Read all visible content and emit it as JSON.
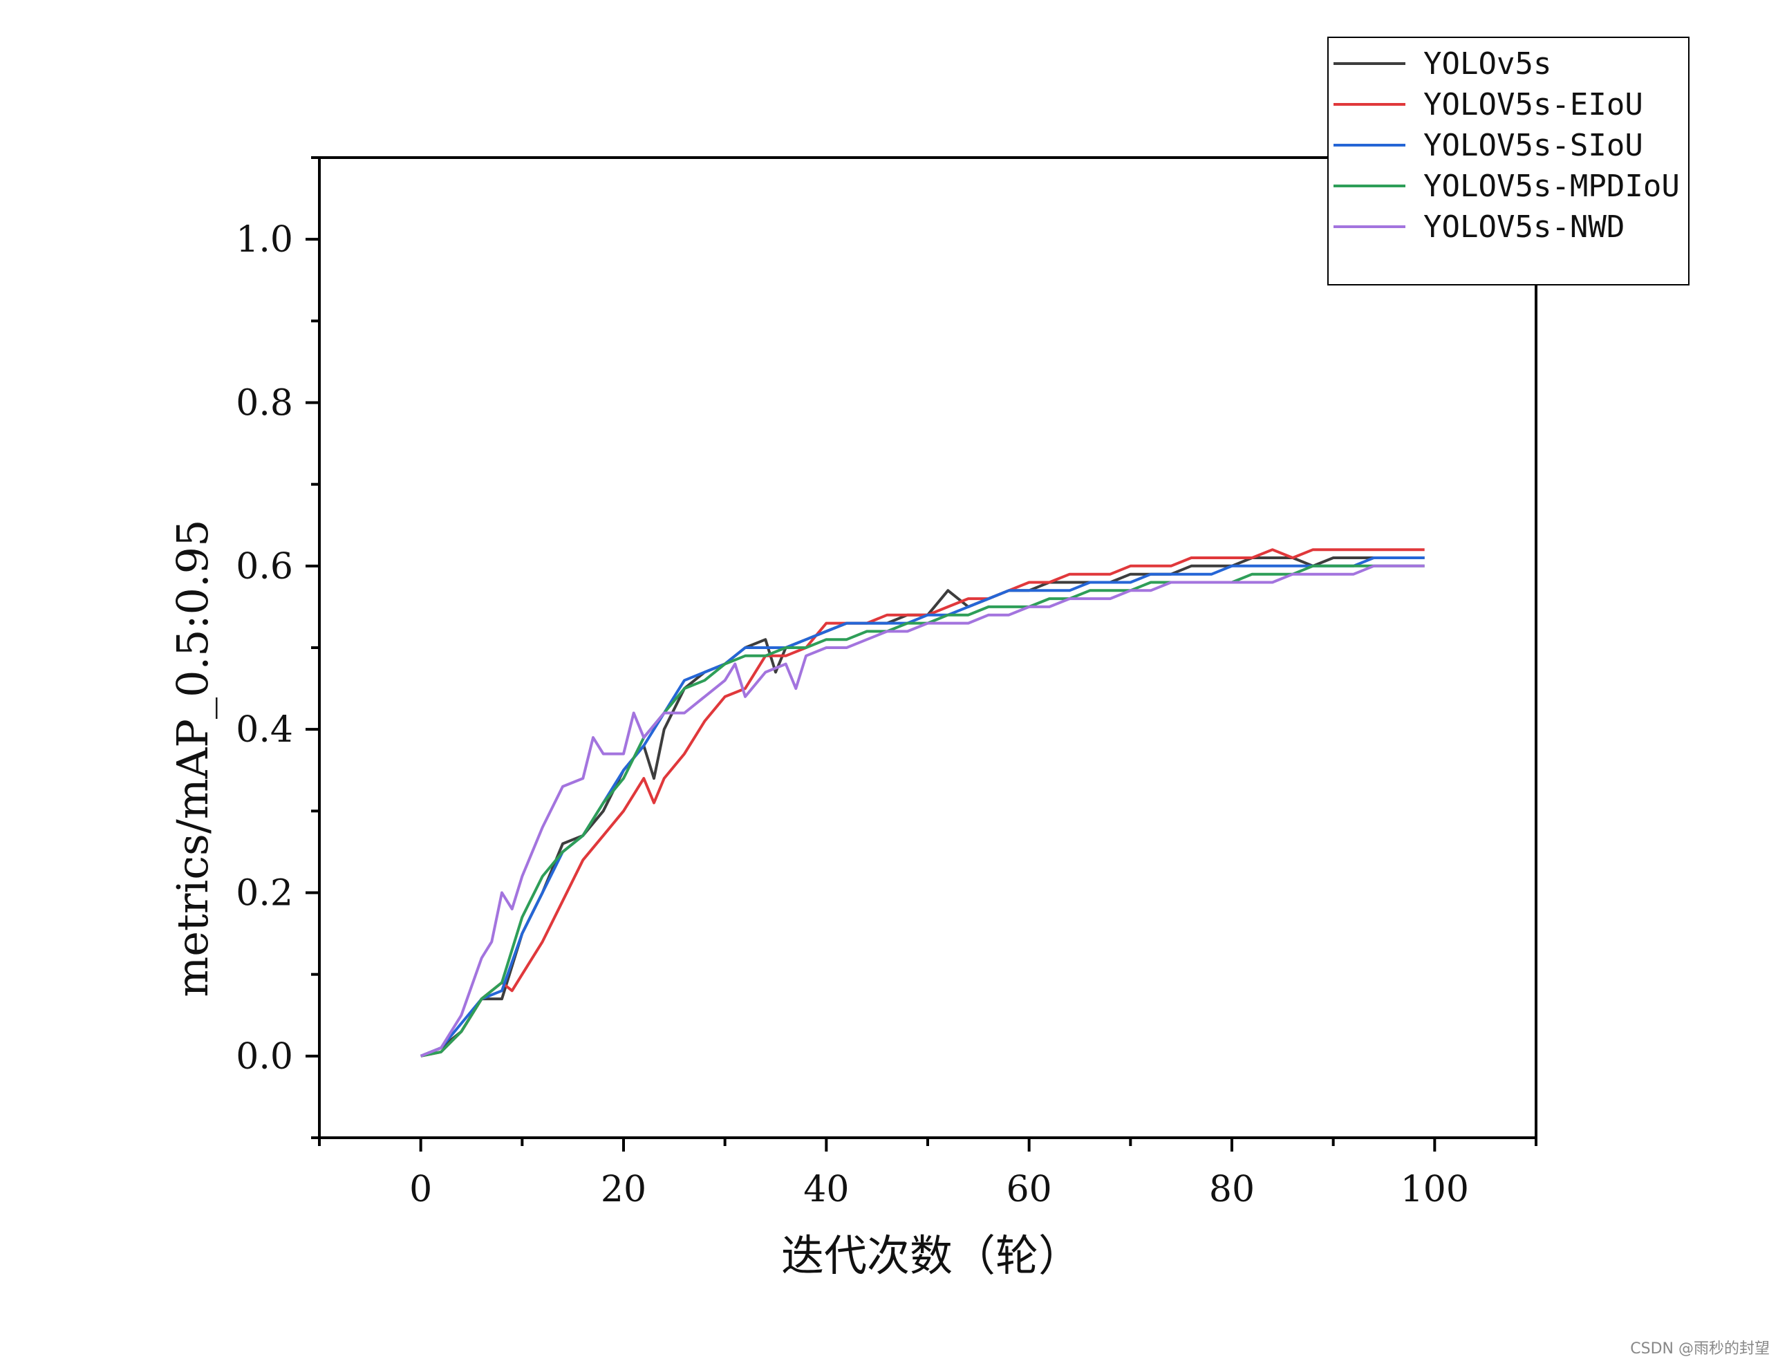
{
  "chart_data": {
    "type": "line",
    "title": "",
    "xlabel": "迭代次数（轮）",
    "ylabel": "metrics/mAP_0.5:0.95",
    "xlim": [
      -10,
      110
    ],
    "ylim": [
      -0.1,
      1.1
    ],
    "x_ticks": [
      0,
      20,
      40,
      60,
      80,
      100
    ],
    "x_tick_labels": [
      "0",
      "20",
      "40",
      "60",
      "80",
      "100"
    ],
    "y_ticks": [
      0.0,
      0.2,
      0.4,
      0.6,
      0.8,
      1.0
    ],
    "y_tick_labels": [
      "0.0",
      "0.2",
      "0.4",
      "0.6",
      "0.8",
      "1.0"
    ],
    "grid": false,
    "legend_position": "top-right",
    "series": [
      {
        "name": "YOLOv5s",
        "color": "#3d3d3d",
        "x": [
          0,
          2,
          4,
          6,
          8,
          10,
          12,
          14,
          16,
          18,
          20,
          22,
          23,
          24,
          26,
          28,
          30,
          32,
          34,
          35,
          36,
          38,
          40,
          42,
          44,
          46,
          48,
          50,
          52,
          54,
          56,
          58,
          60,
          62,
          64,
          66,
          68,
          70,
          72,
          74,
          76,
          78,
          80,
          82,
          84,
          86,
          88,
          90,
          92,
          94,
          96,
          98,
          99
        ],
        "y": [
          0,
          0.01,
          0.03,
          0.07,
          0.07,
          0.15,
          0.2,
          0.26,
          0.27,
          0.3,
          0.35,
          0.38,
          0.34,
          0.4,
          0.45,
          0.47,
          0.48,
          0.5,
          0.51,
          0.47,
          0.5,
          0.51,
          0.52,
          0.53,
          0.53,
          0.53,
          0.54,
          0.54,
          0.57,
          0.55,
          0.56,
          0.57,
          0.57,
          0.58,
          0.58,
          0.58,
          0.58,
          0.59,
          0.59,
          0.59,
          0.6,
          0.6,
          0.6,
          0.61,
          0.61,
          0.61,
          0.6,
          0.61,
          0.61,
          0.61,
          0.61,
          0.61,
          0.61
        ]
      },
      {
        "name": "YOLOV5s-EIoU",
        "color": "#e0383b",
        "x": [
          0,
          2,
          4,
          6,
          8,
          9,
          10,
          12,
          14,
          16,
          18,
          20,
          22,
          23,
          24,
          26,
          28,
          30,
          32,
          34,
          36,
          38,
          40,
          42,
          44,
          46,
          48,
          50,
          52,
          54,
          56,
          58,
          60,
          62,
          64,
          66,
          68,
          70,
          72,
          74,
          76,
          78,
          80,
          82,
          84,
          86,
          88,
          90,
          92,
          94,
          96,
          98,
          99
        ],
        "y": [
          0,
          0.005,
          0.03,
          0.07,
          0.09,
          0.08,
          0.1,
          0.14,
          0.19,
          0.24,
          0.27,
          0.3,
          0.34,
          0.31,
          0.34,
          0.37,
          0.41,
          0.44,
          0.45,
          0.49,
          0.49,
          0.5,
          0.53,
          0.53,
          0.53,
          0.54,
          0.54,
          0.54,
          0.55,
          0.56,
          0.56,
          0.57,
          0.58,
          0.58,
          0.59,
          0.59,
          0.59,
          0.6,
          0.6,
          0.6,
          0.61,
          0.61,
          0.61,
          0.61,
          0.62,
          0.61,
          0.62,
          0.62,
          0.62,
          0.62,
          0.62,
          0.62,
          0.62
        ]
      },
      {
        "name": "YOLOV5s-SIoU",
        "color": "#2566d6",
        "x": [
          0,
          2,
          4,
          6,
          8,
          10,
          12,
          14,
          16,
          18,
          20,
          22,
          24,
          26,
          28,
          30,
          32,
          34,
          36,
          38,
          40,
          42,
          44,
          46,
          48,
          50,
          52,
          54,
          56,
          58,
          60,
          62,
          64,
          66,
          68,
          70,
          72,
          74,
          76,
          78,
          80,
          82,
          84,
          86,
          88,
          90,
          92,
          94,
          96,
          98,
          99
        ],
        "y": [
          0,
          0.01,
          0.04,
          0.07,
          0.08,
          0.15,
          0.2,
          0.25,
          0.27,
          0.31,
          0.35,
          0.38,
          0.42,
          0.46,
          0.47,
          0.48,
          0.5,
          0.5,
          0.5,
          0.51,
          0.52,
          0.53,
          0.53,
          0.53,
          0.53,
          0.54,
          0.54,
          0.55,
          0.56,
          0.57,
          0.57,
          0.57,
          0.57,
          0.58,
          0.58,
          0.58,
          0.59,
          0.59,
          0.59,
          0.59,
          0.6,
          0.6,
          0.6,
          0.6,
          0.6,
          0.6,
          0.6,
          0.61,
          0.61,
          0.61,
          0.61
        ]
      },
      {
        "name": "YOLOV5s-MPDIoU",
        "color": "#2e9e58",
        "x": [
          0,
          2,
          4,
          6,
          8,
          10,
          12,
          14,
          16,
          18,
          20,
          22,
          24,
          26,
          28,
          30,
          32,
          34,
          36,
          38,
          40,
          42,
          44,
          46,
          48,
          50,
          52,
          54,
          56,
          58,
          60,
          62,
          64,
          66,
          68,
          70,
          72,
          74,
          76,
          78,
          80,
          82,
          84,
          86,
          88,
          90,
          92,
          94,
          96,
          98,
          99
        ],
        "y": [
          0,
          0.005,
          0.03,
          0.07,
          0.09,
          0.17,
          0.22,
          0.25,
          0.27,
          0.31,
          0.34,
          0.39,
          0.42,
          0.45,
          0.46,
          0.48,
          0.49,
          0.49,
          0.5,
          0.5,
          0.51,
          0.51,
          0.52,
          0.52,
          0.53,
          0.53,
          0.54,
          0.54,
          0.55,
          0.55,
          0.55,
          0.56,
          0.56,
          0.57,
          0.57,
          0.57,
          0.58,
          0.58,
          0.58,
          0.58,
          0.58,
          0.59,
          0.59,
          0.59,
          0.6,
          0.6,
          0.6,
          0.6,
          0.6,
          0.6,
          0.6
        ]
      },
      {
        "name": "YOLOV5s-NWD",
        "color": "#a374de",
        "x": [
          0,
          2,
          4,
          6,
          7,
          8,
          9,
          10,
          12,
          14,
          16,
          17,
          18,
          20,
          21,
          22,
          24,
          26,
          28,
          30,
          31,
          32,
          34,
          36,
          37,
          38,
          40,
          42,
          44,
          46,
          48,
          50,
          52,
          54,
          56,
          58,
          60,
          62,
          64,
          66,
          68,
          70,
          72,
          74,
          76,
          78,
          80,
          82,
          84,
          86,
          88,
          90,
          92,
          94,
          96,
          98,
          99
        ],
        "y": [
          0,
          0.01,
          0.05,
          0.12,
          0.14,
          0.2,
          0.18,
          0.22,
          0.28,
          0.33,
          0.34,
          0.39,
          0.37,
          0.37,
          0.42,
          0.39,
          0.42,
          0.42,
          0.44,
          0.46,
          0.48,
          0.44,
          0.47,
          0.48,
          0.45,
          0.49,
          0.5,
          0.5,
          0.51,
          0.52,
          0.52,
          0.53,
          0.53,
          0.53,
          0.54,
          0.54,
          0.55,
          0.55,
          0.56,
          0.56,
          0.56,
          0.57,
          0.57,
          0.58,
          0.58,
          0.58,
          0.58,
          0.58,
          0.58,
          0.59,
          0.59,
          0.59,
          0.59,
          0.6,
          0.6,
          0.6,
          0.6
        ]
      }
    ]
  },
  "watermark": "CSDN @雨秒的封望"
}
